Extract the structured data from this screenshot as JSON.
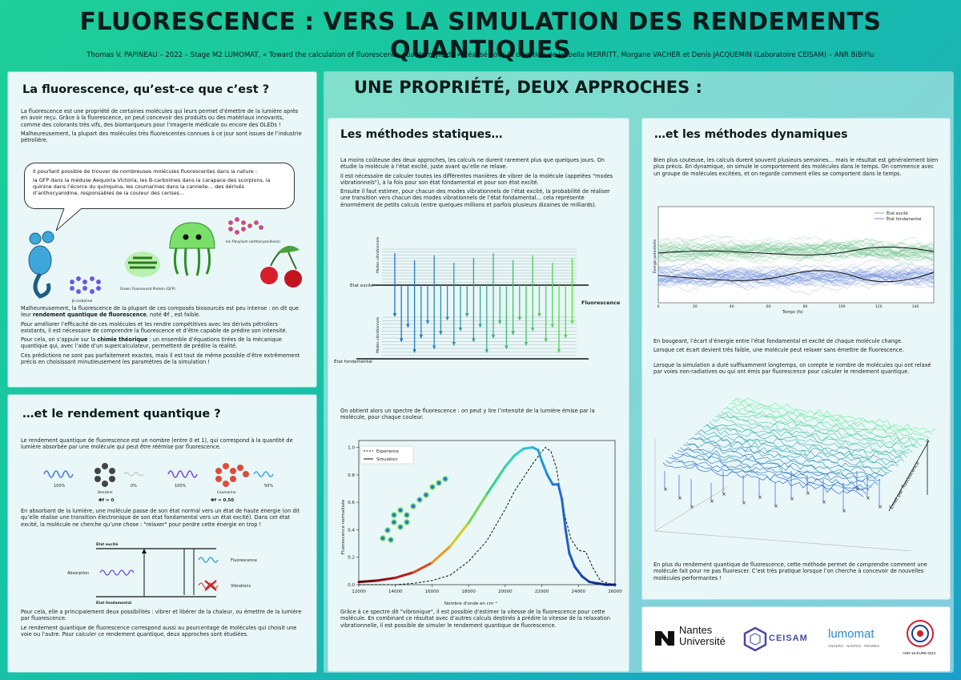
{
  "header": {
    "title": "FLUORESCENCE : VERS LA SIMULATION DES RENDEMENTS QUANTIQUES",
    "subtitle": "Thomas V. PAPINEAU – 2022 – Stage M2 LUMOMAT, « Toward the calculation of fluorescence quantum yields », réalisé sous la direction de Isabella MERRITT, Morgane VACHER et Denis JACQUEMIN (Laboratoire CEISAM) – ANR BiBiFlu"
  },
  "fluo": {
    "title": "La fluorescence, qu’est-ce que c’est ?",
    "p1": "La fluorescence est une propriété de certaines molécules qui leurs permet d’émettre de la lumière après en avoir reçu. Grâce à la fluorescence, on peut concevoir des produits ou des matériaux innovants, comme des colorants très vifs, des biomarqueurs pour l’imagerie médicale ou encore des OLEDs !",
    "p2": "Malheureusement, la plupart des molécules très fluorescentes connues à ce jour sont issues de l’industrie pétrolière.",
    "bubble_1": "Il pourtant possible de trouver de nombreuses molécules fluorescentes dans la nature :",
    "bubble_2": "la GFP dans la méduse Aequoria Victoria, les B-carbolines dans la carapace des scorpions, la quinine dans l’écorce du quinquina, les coumarines dans la cannelle… des dérivés d’anthocyanidine, responsables de la couleur des cerises…",
    "label_bcarb": "β-carboline",
    "label_gfp": "Green Fluorescent Protein (GFP)",
    "label_flav": "Ion flavylium (anthocyanidines)",
    "p3a": "Malheureusement, la fluorescence de la plupart de ces composés biosourcés est peu intense : on dit que leur ",
    "p3b": "rendement quantique de fluorescence",
    "p3c": ", noté Φf , est faible.",
    "p4": "Pour améliorer l’efficacité de ces molécules et les rendre compétitives avec les dérivés pétroliers existants, il est nécessaire de comprendre la fluorescence et d’être capable de prédire son intensité.",
    "p5a": "Pour cela, on s’appuie sur la ",
    "p5b": "chimie théorique",
    "p5c": " : un ensemble d’équations tirées de la mécanique quantique qui, avec l’aide d’un supercalculateur, permettent de prédire la réalité.",
    "p6": "Ces prédictions ne sont pas parfaitement exactes, mais il est tout de même possible d’être extrêmement précis en choisissant minutieusement les paramètres de la simulation !"
  },
  "rendement": {
    "title": "…et le rendement quantique ?",
    "p1": "Le rendement quantique de fluorescence est un nombre (entre 0 et 1), qui correspond à la quantité de lumière absorbée par une molécule qui peut être réémise par fluorescence.",
    "pct100a": "100%",
    "pct0": "0%",
    "benzene": "Benzène",
    "phi0": "Φf = 0",
    "pct100b": "100%",
    "pct50": "50%",
    "coumarine": "Coumarine",
    "phi050": "Φf = 0.50",
    "p2": "En absorbant de la lumière, une molécule passe de son état normal vers un état de haute énergie (on dit qu’elle réalise une transition électronique de son état fondamental vers un état excité). Dans cet état excité, la molécule ne cherche qu’une chose : \"relaxer\" pour perdre cette énergie en trop !",
    "diag_excite": "État excité",
    "diag_fond": "État fondamental",
    "diag_abs": "Absorption",
    "diag_fluo": "Fluorescence",
    "diag_vib": "Vibrations",
    "p3": "Pour cela, elle a principalement deux possibilités : vibrer et libérer de la chaleur, ou émettre de la lumière par fluorescence.",
    "p4": "Le rendement quantique de fluorescence correspond aussi au pourcentage de molécules qui choisit une voie ou l’autre. Pour calculer ce rendement quantique, deux approches sont étudiées."
  },
  "main": {
    "title": "UNE PROPRIÉTÉ, DEUX APPROCHES :"
  },
  "statique": {
    "title": "Les méthodes statiques…",
    "p1": "La moins coûteuse des deux approches, les calculs ne durent rarement plus que quelques jours. On étudie la molécule à l’état excité, juste avant qu’elle ne relaxe.",
    "p2": "Il est nécessaire de calculer toutes les différentes manières de vibrer de la molécule (appelées \"modes vibrationnels\"), à la fois pour son état fondamental et pour son état excité.",
    "p3": "Ensuite il faut estimer, pour chacun des modes vibrationnels de l’état excité, la probabilité de réaliser une transition vers chacun des modes vibrationnels de l’état fondamental… cela représente énormément de petits calculs (entre quelques millions et parfois plusieurs dizaines de milliards).",
    "diag_modes_vib": "Modes vibrationnels",
    "diag_excite": "État excité",
    "diag_fond": "État fondamental",
    "diag_fluo": "Fluorescence",
    "p4": "On obtient alors un spectre de fluorescence : on peut y lire l’intensité de la lumière émise par la molécule, pour chaque couleur.",
    "p5": "Grâce à ce spectre dit \"vibronique\", il est possible d’estimer la vitesse de la fluorescence pour cette molécule. En combinant ce résultat avec d’autres calculs destinés à prédire la vitesse de la relaxation vibrationnelle, il est possible de simuler le rendement quantique de fluorescence."
  },
  "dynamique": {
    "title": "…et les méthodes dynamiques",
    "p1": "Bien plus couteuse, les calculs durent souvent plusieurs semaines… mais le résultat est généralement bien plus précis. En dynamique, on simule le comportement des molécules dans le temps. On commence avec un groupe de molécules excitées, et on regarde comment elles se comportent dans le temps.",
    "p2": "En bougeant, l’écart d’énergie entre l’état fondamental et excité de chaque molécule change.",
    "p3": "Lorsque cet écart devient très faible, une molécule peut relaxer sans émettre de fluorescence.",
    "p4": "Lorsque la simulation a duré suffisamment longtemps, on compte le nombre de molécules qui ont relaxé par voies non-radiatives ou qui ont émis par fluorescence pour calculer le rendement quantique.",
    "emet_label": "Émet par fluorescence",
    "p5": "En plus du rendement quantique de fluorescence, cette méthode permet de comprendre comment une molécule fait pour ne pas fluorescer. C’est très pratique lorsque l’on cherche à concevoir de nouvelles molécules performantes !"
  },
  "logos": {
    "nantes1": "Nantes",
    "nantes2": "Université",
    "ceisam": "CEISAM",
    "lumomat": "lumomat",
    "lumomat_sub": "ANGERS · NANTES · RENNES",
    "anr": "ANR-18-EURE-0012"
  },
  "chart_data": [
    {
      "type": "line",
      "title": "",
      "xlabel": "Nombre d'onde en cm⁻¹",
      "ylabel": "Fluorescence normalisée",
      "xlim": [
        12000,
        26000
      ],
      "ylim": [
        0,
        1.05
      ],
      "xticks": [
        "12000",
        "14000",
        "16000",
        "18000",
        "20000",
        "22000",
        "24000",
        "26000"
      ],
      "yticks": [
        "0.0",
        "0.2",
        "0.4",
        "0.6",
        "0.8",
        "1.0"
      ],
      "legend": "top-left",
      "series": [
        {
          "name": "Expérience",
          "x": [
            12000,
            14000,
            15000,
            16000,
            17000,
            18000,
            19000,
            20000,
            20500,
            21000,
            21500,
            22000,
            22200,
            22500,
            22800,
            23000,
            23300,
            23600,
            24000,
            24400,
            24800,
            25200,
            25600,
            26000
          ],
          "y": [
            0.0,
            0.0,
            0.01,
            0.03,
            0.07,
            0.17,
            0.32,
            0.55,
            0.68,
            0.78,
            0.88,
            0.97,
            1.0,
            0.97,
            0.85,
            0.68,
            0.48,
            0.33,
            0.25,
            0.24,
            0.12,
            0.03,
            0.01,
            0.0
          ]
        },
        {
          "name": "Simulation",
          "x": [
            12000,
            13000,
            14000,
            15000,
            16000,
            17000,
            18000,
            19000,
            20000,
            20500,
            21000,
            21500,
            21800,
            22000,
            22300,
            22600,
            22900,
            23100,
            23300,
            23500,
            23800,
            24200,
            24600,
            25000,
            25500,
            26000
          ],
          "y": [
            0.02,
            0.03,
            0.05,
            0.09,
            0.16,
            0.28,
            0.45,
            0.66,
            0.86,
            0.94,
            0.99,
            1.0,
            0.98,
            0.9,
            0.8,
            0.73,
            0.73,
            0.62,
            0.4,
            0.23,
            0.13,
            0.06,
            0.02,
            0.01,
            0.0,
            0.0
          ]
        }
      ]
    },
    {
      "type": "line",
      "title": "",
      "xlabel": "Temps (fs)",
      "ylabel": "Énergie potentielle",
      "xlim": [
        0,
        150
      ],
      "xticks": [
        "0",
        "20",
        "40",
        "60",
        "80",
        "100",
        "120",
        "140"
      ],
      "legend": "top-right",
      "series": [
        {
          "name": "État excité"
        },
        {
          "name": "État fondamental"
        }
      ]
    }
  ]
}
